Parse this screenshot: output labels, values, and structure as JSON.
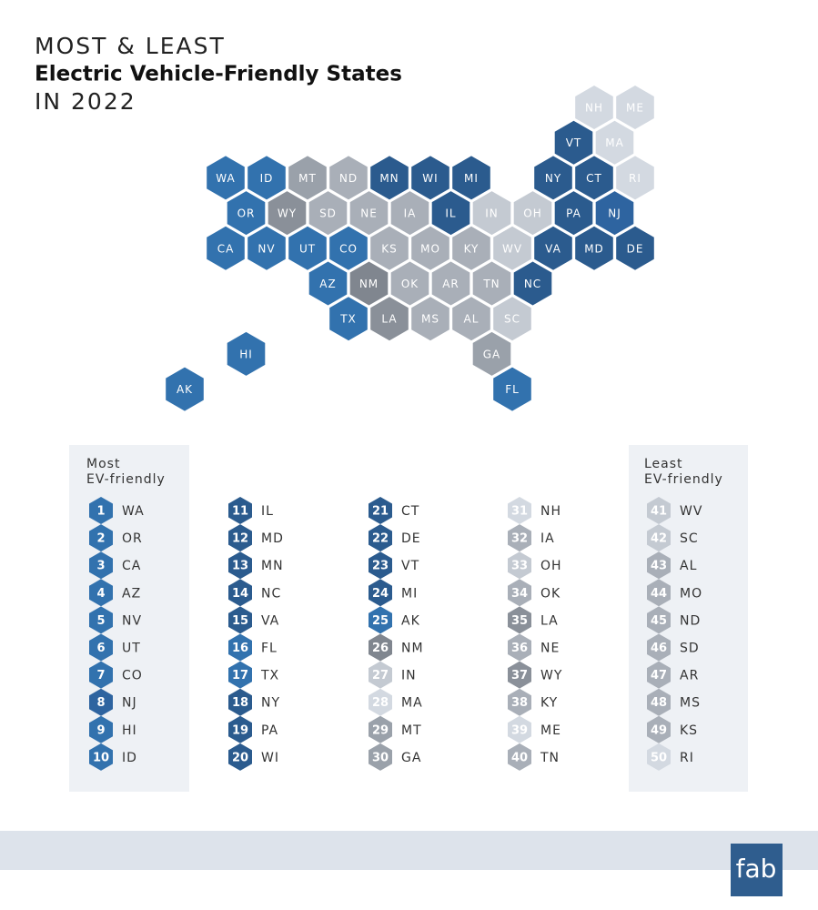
{
  "title": {
    "line1": "MOST & LEAST",
    "line2": "Electric Vehicle-Friendly States",
    "line3": "IN 2022"
  },
  "map": {
    "rows": [
      [
        null,
        null,
        null,
        null,
        null,
        null,
        null,
        null,
        null,
        null,
        "NH",
        "ME"
      ],
      [
        null,
        null,
        null,
        null,
        null,
        null,
        null,
        null,
        null,
        "VT",
        "MA"
      ],
      [
        null,
        "WA",
        "ID",
        "MT",
        "ND",
        "MN",
        "WI",
        "MI",
        null,
        "NY",
        "CT",
        "RI"
      ],
      [
        null,
        "OR",
        "WY",
        "SD",
        "NE",
        "IA",
        "IL",
        "IN",
        "OH",
        "PA",
        "NJ"
      ],
      [
        null,
        "CA",
        "NV",
        "UT",
        "CO",
        "KS",
        "MO",
        "KY",
        "WV",
        "VA",
        "MD",
        "DE"
      ],
      [
        null,
        null,
        null,
        "AZ",
        "NM",
        "OK",
        "AR",
        "TN",
        "NC"
      ],
      [
        null,
        null,
        null,
        null,
        "TX",
        "LA",
        "MS",
        "AL",
        "SC"
      ],
      [
        null,
        "HI",
        null,
        null,
        null,
        null,
        null,
        "GA"
      ],
      [
        "AK",
        null,
        null,
        null,
        null,
        null,
        null,
        null,
        "FL"
      ]
    ]
  },
  "ranking": {
    "columns": [
      {
        "heading": [
          "Most",
          "EV-friendly"
        ],
        "entries": [
          {
            "rank": 1,
            "state": "WA",
            "color": "#3272ae"
          },
          {
            "rank": 2,
            "state": "OR",
            "color": "#3272ae"
          },
          {
            "rank": 3,
            "state": "CA",
            "color": "#3272ae"
          },
          {
            "rank": 4,
            "state": "AZ",
            "color": "#3272ae"
          },
          {
            "rank": 5,
            "state": "NV",
            "color": "#3272ae"
          },
          {
            "rank": 6,
            "state": "UT",
            "color": "#3272ae"
          },
          {
            "rank": 7,
            "state": "CO",
            "color": "#3272ae"
          },
          {
            "rank": 8,
            "state": "NJ",
            "color": "#2e64a0"
          },
          {
            "rank": 9,
            "state": "HI",
            "color": "#3272ae"
          },
          {
            "rank": 10,
            "state": "ID",
            "color": "#3272ae"
          }
        ]
      },
      {
        "entries": [
          {
            "rank": 11,
            "state": "IL",
            "color": "#2b5b8e"
          },
          {
            "rank": 12,
            "state": "MD",
            "color": "#2b5b8e"
          },
          {
            "rank": 13,
            "state": "MN",
            "color": "#2b5b8e"
          },
          {
            "rank": 14,
            "state": "NC",
            "color": "#2b5b8e"
          },
          {
            "rank": 15,
            "state": "VA",
            "color": "#2b5b8e"
          },
          {
            "rank": 16,
            "state": "FL",
            "color": "#3272ae"
          },
          {
            "rank": 17,
            "state": "TX",
            "color": "#3272ae"
          },
          {
            "rank": 18,
            "state": "NY",
            "color": "#2b5b8e"
          },
          {
            "rank": 19,
            "state": "PA",
            "color": "#2b5b8e"
          },
          {
            "rank": 20,
            "state": "WI",
            "color": "#2b5b8e"
          }
        ]
      },
      {
        "entries": [
          {
            "rank": 21,
            "state": "CT",
            "color": "#2b5b8e"
          },
          {
            "rank": 22,
            "state": "DE",
            "color": "#2b5b8e"
          },
          {
            "rank": 23,
            "state": "VT",
            "color": "#2b5b8e"
          },
          {
            "rank": 24,
            "state": "MI",
            "color": "#2b5b8e"
          },
          {
            "rank": 25,
            "state": "AK",
            "color": "#3272ae"
          },
          {
            "rank": 26,
            "state": "NM",
            "color": "#80868f"
          },
          {
            "rank": 27,
            "state": "IN",
            "color": "#c4cad2"
          },
          {
            "rank": 28,
            "state": "MA",
            "color": "#d3d9e1"
          },
          {
            "rank": 29,
            "state": "MT",
            "color": "#9aa1aa"
          },
          {
            "rank": 30,
            "state": "GA",
            "color": "#9aa1aa"
          }
        ]
      },
      {
        "entries": [
          {
            "rank": 31,
            "state": "NH",
            "color": "#d3d9e1"
          },
          {
            "rank": 32,
            "state": "IA",
            "color": "#a9afb8"
          },
          {
            "rank": 33,
            "state": "OH",
            "color": "#c4cad2"
          },
          {
            "rank": 34,
            "state": "OK",
            "color": "#a9afb8"
          },
          {
            "rank": 35,
            "state": "LA",
            "color": "#8a9099"
          },
          {
            "rank": 36,
            "state": "NE",
            "color": "#a9afb8"
          },
          {
            "rank": 37,
            "state": "WY",
            "color": "#8a9099"
          },
          {
            "rank": 38,
            "state": "KY",
            "color": "#a9afb8"
          },
          {
            "rank": 39,
            "state": "ME",
            "color": "#d3d9e1"
          },
          {
            "rank": 40,
            "state": "TN",
            "color": "#a9afb8"
          }
        ]
      },
      {
        "heading": [
          "Least",
          "EV-friendly"
        ],
        "entries": [
          {
            "rank": 41,
            "state": "WV",
            "color": "#c4cad2"
          },
          {
            "rank": 42,
            "state": "SC",
            "color": "#c4cad2"
          },
          {
            "rank": 43,
            "state": "AL",
            "color": "#a9afb8"
          },
          {
            "rank": 44,
            "state": "MO",
            "color": "#a9afb8"
          },
          {
            "rank": 45,
            "state": "ND",
            "color": "#a9afb8"
          },
          {
            "rank": 46,
            "state": "SD",
            "color": "#a9afb8"
          },
          {
            "rank": 47,
            "state": "AR",
            "color": "#a9afb8"
          },
          {
            "rank": 48,
            "state": "MS",
            "color": "#a9afb8"
          },
          {
            "rank": 49,
            "state": "KS",
            "color": "#a9afb8"
          },
          {
            "rank": 50,
            "state": "RI",
            "color": "#d3d9e1"
          }
        ]
      }
    ]
  },
  "logo": "fab"
}
